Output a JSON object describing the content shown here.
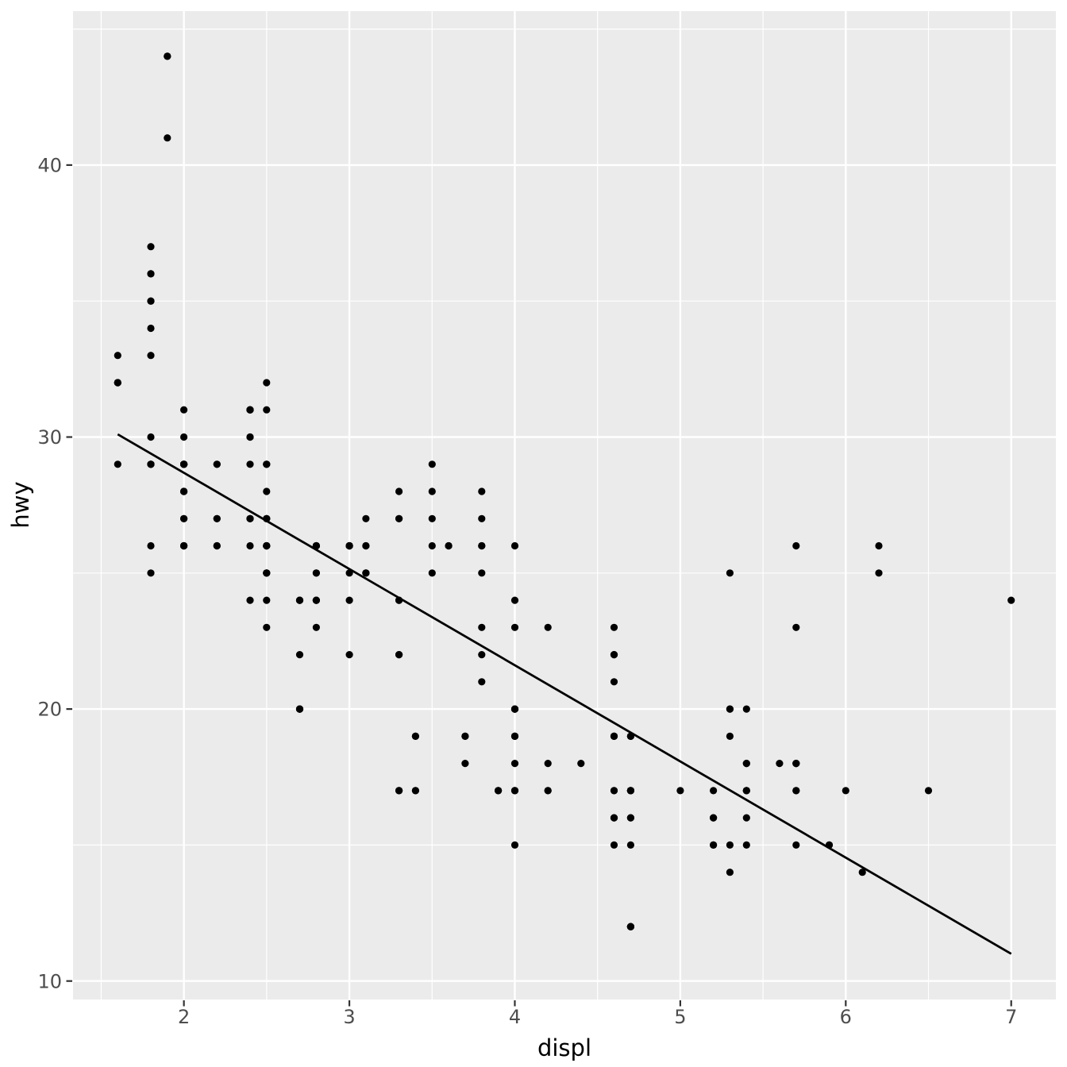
{
  "chart_data": {
    "type": "scatter",
    "title": "",
    "xlabel": "displ",
    "ylabel": "hwy",
    "x_ticks": [
      2,
      3,
      4,
      5,
      6,
      7
    ],
    "y_ticks": [
      10,
      20,
      30,
      40
    ],
    "x_minor_ticks": [
      1.5,
      2.5,
      3.5,
      4.5,
      5.5,
      6.5
    ],
    "y_minor_ticks": [
      15,
      25,
      35,
      45
    ],
    "xlim": [
      1.33,
      7.27
    ],
    "ylim": [
      9.32,
      45.66
    ],
    "grid": "major and minor, white on gray panel",
    "legend_position": "none",
    "panel_bg": "#EBEBEB",
    "grid_color": "#FFFFFF",
    "point_color": "#000000",
    "tick_mark_color": "#333333",
    "tick_label_color": "#4D4D4D",
    "axis_title_color": "#000000",
    "trend_line": {
      "x1": 1.6,
      "y1": 30.1,
      "x2": 7.0,
      "y2": 11.0,
      "color": "#000000"
    },
    "points": [
      [
        1.8,
        29
      ],
      [
        1.8,
        29
      ],
      [
        2,
        31
      ],
      [
        2,
        30
      ],
      [
        2.8,
        26
      ],
      [
        2.8,
        26
      ],
      [
        3.1,
        27
      ],
      [
        1.8,
        26
      ],
      [
        1.8,
        25
      ],
      [
        2,
        28
      ],
      [
        2,
        27
      ],
      [
        2.8,
        25
      ],
      [
        2.8,
        25
      ],
      [
        3.1,
        25
      ],
      [
        3.1,
        25
      ],
      [
        2.8,
        24
      ],
      [
        3.1,
        25
      ],
      [
        4.2,
        23
      ],
      [
        5.3,
        20
      ],
      [
        5.3,
        15
      ],
      [
        5.3,
        20
      ],
      [
        5.7,
        17
      ],
      [
        6,
        17
      ],
      [
        5.7,
        26
      ],
      [
        5.7,
        23
      ],
      [
        6.2,
        26
      ],
      [
        6.2,
        25
      ],
      [
        7,
        24
      ],
      [
        5.3,
        19
      ],
      [
        5.3,
        14
      ],
      [
        5.7,
        15
      ],
      [
        6.5,
        17
      ],
      [
        2.4,
        27
      ],
      [
        2.4,
        30
      ],
      [
        3.1,
        26
      ],
      [
        3.5,
        29
      ],
      [
        3.6,
        26
      ],
      [
        2.4,
        24
      ],
      [
        3,
        24
      ],
      [
        3.3,
        22
      ],
      [
        3.3,
        22
      ],
      [
        3.3,
        24
      ],
      [
        3.3,
        24
      ],
      [
        3.3,
        17
      ],
      [
        3.8,
        22
      ],
      [
        3.8,
        21
      ],
      [
        3.8,
        23
      ],
      [
        4,
        23
      ],
      [
        3.7,
        19
      ],
      [
        3.7,
        18
      ],
      [
        3.9,
        17
      ],
      [
        3.9,
        17
      ],
      [
        4.7,
        19
      ],
      [
        4.7,
        19
      ],
      [
        4.7,
        12
      ],
      [
        5.2,
        17
      ],
      [
        5.2,
        15
      ],
      [
        3.9,
        17
      ],
      [
        4.7,
        17
      ],
      [
        4.7,
        12
      ],
      [
        4.7,
        17
      ],
      [
        5.2,
        16
      ],
      [
        5.7,
        18
      ],
      [
        5.9,
        15
      ],
      [
        4.7,
        16
      ],
      [
        4.7,
        12
      ],
      [
        4.7,
        17
      ],
      [
        4.7,
        17
      ],
      [
        4.7,
        16
      ],
      [
        4.7,
        12
      ],
      [
        5.2,
        15
      ],
      [
        5.2,
        16
      ],
      [
        5.7,
        17
      ],
      [
        5.9,
        15
      ],
      [
        4.6,
        17
      ],
      [
        5.4,
        17
      ],
      [
        5.4,
        18
      ],
      [
        4,
        17
      ],
      [
        4,
        19
      ],
      [
        4,
        17
      ],
      [
        4,
        19
      ],
      [
        4.6,
        19
      ],
      [
        4.6,
        19
      ],
      [
        4.2,
        17
      ],
      [
        4.2,
        17
      ],
      [
        4.6,
        16
      ],
      [
        4.6,
        16
      ],
      [
        4.6,
        17
      ],
      [
        5.4,
        15
      ],
      [
        5.4,
        17
      ],
      [
        3.8,
        26
      ],
      [
        3.8,
        25
      ],
      [
        4,
        26
      ],
      [
        4,
        24
      ],
      [
        4.6,
        21
      ],
      [
        4.6,
        22
      ],
      [
        4.6,
        23
      ],
      [
        4.6,
        22
      ],
      [
        5.4,
        20
      ],
      [
        1.6,
        33
      ],
      [
        1.6,
        32
      ],
      [
        1.6,
        32
      ],
      [
        1.6,
        29
      ],
      [
        1.6,
        32
      ],
      [
        1.8,
        34
      ],
      [
        1.8,
        36
      ],
      [
        1.8,
        36
      ],
      [
        2,
        29
      ],
      [
        2.4,
        26
      ],
      [
        2.4,
        27
      ],
      [
        2.4,
        30
      ],
      [
        2.4,
        31
      ],
      [
        2.5,
        26
      ],
      [
        2.5,
        26
      ],
      [
        3.3,
        28
      ],
      [
        2,
        26
      ],
      [
        2,
        29
      ],
      [
        2,
        28
      ],
      [
        2,
        27
      ],
      [
        2.7,
        24
      ],
      [
        2.7,
        24
      ],
      [
        2.7,
        24
      ],
      [
        3,
        22
      ],
      [
        3.7,
        19
      ],
      [
        4,
        20
      ],
      [
        4.7,
        17
      ],
      [
        4.7,
        12
      ],
      [
        4.7,
        19
      ],
      [
        5.7,
        18
      ],
      [
        6.1,
        14
      ],
      [
        4,
        15
      ],
      [
        4.2,
        18
      ],
      [
        4.4,
        18
      ],
      [
        4.6,
        15
      ],
      [
        5.4,
        17
      ],
      [
        5.4,
        16
      ],
      [
        5.4,
        18
      ],
      [
        4,
        17
      ],
      [
        4,
        19
      ],
      [
        4.6,
        19
      ],
      [
        5,
        17
      ],
      [
        2.4,
        29
      ],
      [
        2.4,
        27
      ],
      [
        2.5,
        31
      ],
      [
        2.5,
        32
      ],
      [
        3.5,
        27
      ],
      [
        3.5,
        26
      ],
      [
        3,
        26
      ],
      [
        3,
        25
      ],
      [
        3.5,
        25
      ],
      [
        3.3,
        17
      ],
      [
        3.3,
        17
      ],
      [
        4,
        20
      ],
      [
        5.6,
        18
      ],
      [
        3.1,
        26
      ],
      [
        3.8,
        26
      ],
      [
        3.8,
        27
      ],
      [
        3.8,
        28
      ],
      [
        5.3,
        25
      ],
      [
        2.5,
        25
      ],
      [
        2.5,
        24
      ],
      [
        2.5,
        27
      ],
      [
        2.5,
        25
      ],
      [
        2.5,
        26
      ],
      [
        2.5,
        23
      ],
      [
        2.2,
        26
      ],
      [
        2.2,
        26
      ],
      [
        2.5,
        26
      ],
      [
        2.5,
        26
      ],
      [
        2.5,
        25
      ],
      [
        2.5,
        27
      ],
      [
        2.5,
        25
      ],
      [
        2.5,
        27
      ],
      [
        2.7,
        20
      ],
      [
        2.7,
        20
      ],
      [
        3.4,
        19
      ],
      [
        3.4,
        17
      ],
      [
        4,
        20
      ],
      [
        4.7,
        17
      ],
      [
        2.2,
        29
      ],
      [
        2.2,
        27
      ],
      [
        2.4,
        31
      ],
      [
        2.4,
        31
      ],
      [
        3,
        26
      ],
      [
        3,
        26
      ],
      [
        3.5,
        28
      ],
      [
        2.2,
        27
      ],
      [
        2.2,
        29
      ],
      [
        2.4,
        31
      ],
      [
        2.4,
        31
      ],
      [
        3,
        26
      ],
      [
        3.3,
        27
      ],
      [
        1.8,
        30
      ],
      [
        1.8,
        33
      ],
      [
        1.8,
        35
      ],
      [
        1.8,
        37
      ],
      [
        1.8,
        35
      ],
      [
        4.7,
        15
      ],
      [
        5.7,
        18
      ],
      [
        3,
        26
      ],
      [
        3.3,
        27
      ],
      [
        2.7,
        20
      ],
      [
        2.7,
        20
      ],
      [
        2.7,
        22
      ],
      [
        3.4,
        17
      ],
      [
        3.4,
        19
      ],
      [
        4,
        18
      ],
      [
        4,
        20
      ],
      [
        2,
        29
      ],
      [
        2,
        26
      ],
      [
        2,
        29
      ],
      [
        2,
        29
      ],
      [
        2.8,
        24
      ],
      [
        1.9,
        44
      ],
      [
        2,
        29
      ],
      [
        2,
        26
      ],
      [
        2,
        29
      ],
      [
        2,
        29
      ],
      [
        2.5,
        29
      ],
      [
        2.5,
        29
      ],
      [
        2.8,
        23
      ],
      [
        2.8,
        24
      ],
      [
        1.9,
        44
      ],
      [
        1.9,
        41
      ],
      [
        2,
        29
      ],
      [
        2,
        26
      ],
      [
        2.5,
        28
      ],
      [
        2.5,
        29
      ],
      [
        1.8,
        29
      ],
      [
        1.8,
        29
      ],
      [
        2,
        28
      ],
      [
        2,
        29
      ],
      [
        2.8,
        26
      ],
      [
        2.8,
        26
      ],
      [
        3.6,
        26
      ]
    ]
  }
}
